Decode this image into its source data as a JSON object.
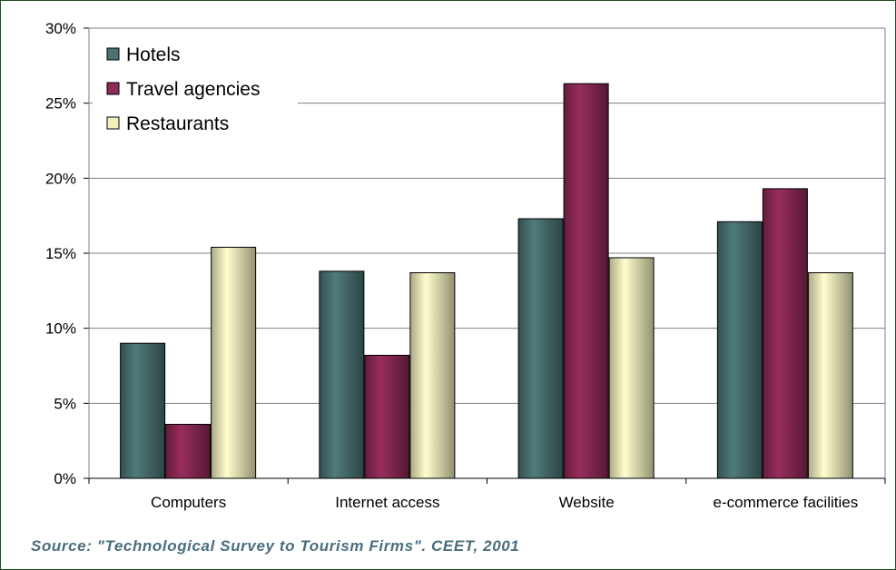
{
  "chart_data": {
    "type": "bar",
    "title": "",
    "xlabel": "",
    "ylabel": "",
    "categories": [
      "Computers",
      "Internet access",
      "Website",
      "e-commerce facilities"
    ],
    "series": [
      {
        "name": "Hotels",
        "values": [
          9.0,
          13.8,
          17.3,
          17.1
        ],
        "color": "#4a7272"
      },
      {
        "name": "Travel agencies",
        "values": [
          3.6,
          8.2,
          26.3,
          19.3
        ],
        "color": "#8e2a55"
      },
      {
        "name": "Restaurants",
        "values": [
          15.4,
          13.7,
          14.7,
          13.7
        ],
        "color": "#f3f0be"
      }
    ],
    "ylim": [
      0,
      30
    ],
    "yticks": [
      "0%",
      "5%",
      "10%",
      "15%",
      "20%",
      "25%",
      "30%"
    ],
    "grid": true,
    "legend_position": "top-left"
  },
  "source_note": "Source: \"Technological Survey to Tourism Firms\". CEET, 2001"
}
